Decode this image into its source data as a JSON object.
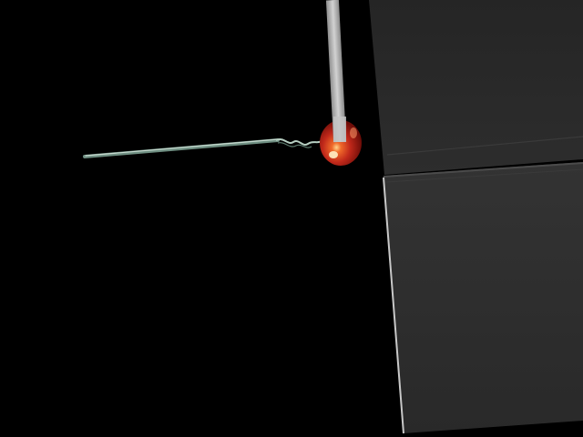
{
  "scene": {
    "description_visible_text": "",
    "colors": {
      "background": "#000000",
      "upper_panel": "#262626",
      "lower_panel": "#2b2b2b",
      "panel_edge": "#bdbdbd",
      "probe": "#b8b8b8",
      "fruit_red": "#c0281a",
      "fruit_highlight": "#f6c27a",
      "wire": "#7f9f90"
    },
    "objects": [
      {
        "name": "upper-gray-panel"
      },
      {
        "name": "lower-gray-panel"
      },
      {
        "name": "gray-probe-rod"
      },
      {
        "name": "red-fruit"
      },
      {
        "name": "thin-wire-stem"
      }
    ]
  }
}
